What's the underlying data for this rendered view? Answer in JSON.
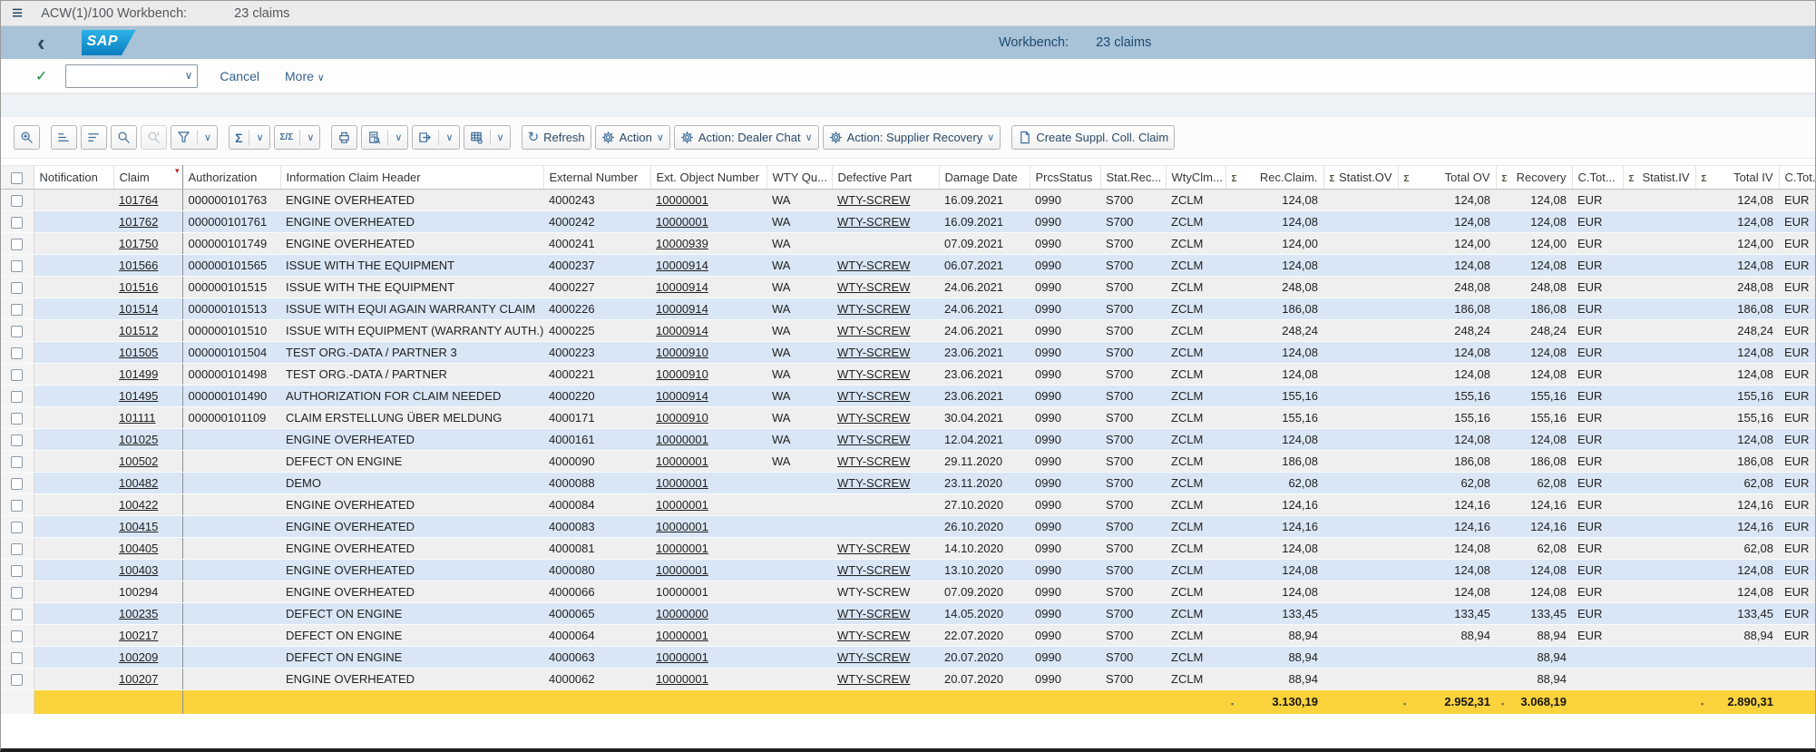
{
  "titlebar": {
    "title": "ACW(1)/100 Workbench:",
    "claims": "23 claims"
  },
  "brandbar": {
    "logo": "SAP",
    "label": "Workbench:",
    "value": "23 claims"
  },
  "shellbar": {
    "command_value": "",
    "cancel": "Cancel",
    "more": "More"
  },
  "alv_toolbar": {
    "refresh": "Refresh",
    "action": "Action",
    "action_dealer_chat": "Action: Dealer Chat",
    "action_supplier_recovery": "Action: Supplier Recovery",
    "create_suppl_coll_claim": "Create Suppl. Coll. Claim"
  },
  "icons": {
    "menu": "≡",
    "back": "‹",
    "ok_check": "✓",
    "chevron_down": "∨",
    "sigma": "Σ",
    "subtotal": "Σ/Σ",
    "refresh": "↻",
    "bullet": "▪",
    "sort_desc": "▾"
  },
  "colors": {
    "brand_bar": "#a8c2d8",
    "row_base": "#efefef",
    "row_alt": "#d9e6f5",
    "totals_row": "#fbd33c",
    "sap_logo_top": "#2cb3e8",
    "sap_logo_bottom": "#0b7dc0",
    "toolbar_icon": "#3f6e99",
    "sort_marker": "#b3261e"
  },
  "table": {
    "columns": [
      {
        "key": "sel",
        "label": ""
      },
      {
        "key": "notification",
        "label": "Notification"
      },
      {
        "key": "claim",
        "label": "Claim",
        "sorted": true,
        "link": true
      },
      {
        "key": "authorization",
        "label": "Authorization"
      },
      {
        "key": "info",
        "label": "Information Claim Header"
      },
      {
        "key": "external",
        "label": "External Number"
      },
      {
        "key": "ext_object",
        "label": "Ext. Object Number",
        "link": true
      },
      {
        "key": "wty_qu",
        "label": "WTY Qu..."
      },
      {
        "key": "defective_part",
        "label": "Defective Part",
        "link": true
      },
      {
        "key": "damage_date",
        "label": "Damage Date"
      },
      {
        "key": "prcs_status",
        "label": "PrcsStatus"
      },
      {
        "key": "stat_rec",
        "label": "Stat.Rec..."
      },
      {
        "key": "wty_clm",
        "label": "WtyClm..."
      },
      {
        "key": "rec_claim",
        "label": "Rec.Claim.",
        "sigma": true,
        "align": "right"
      },
      {
        "key": "statist_ov",
        "label": "Statist.OV",
        "sigma": true,
        "align": "right"
      },
      {
        "key": "total_ov",
        "label": "Total OV",
        "sigma": true,
        "align": "right"
      },
      {
        "key": "recovery",
        "label": "Recovery",
        "sigma": true,
        "align": "right"
      },
      {
        "key": "c_tot1",
        "label": "C.Tot..."
      },
      {
        "key": "statist_iv",
        "label": "Statist.IV",
        "sigma": true,
        "align": "right"
      },
      {
        "key": "total_iv",
        "label": "Total IV",
        "sigma": true,
        "align": "right"
      },
      {
        "key": "c_tot2",
        "label": "C.Tot..."
      }
    ],
    "rows": [
      {
        "notification": "",
        "claim": "101764",
        "authorization": "000000101763",
        "info": "ENGINE OVERHEATED",
        "external": "4000243",
        "ext_object": "10000001",
        "wty_qu": "WA",
        "defective_part": "WTY-SCREW",
        "damage_date": "16.09.2021",
        "prcs_status": "0990",
        "stat_rec": "S700",
        "wty_clm": "ZCLM",
        "rec_claim": "124,08",
        "statist_ov": "",
        "total_ov": "124,08",
        "recovery": "124,08",
        "c_tot1": "EUR",
        "statist_iv": "",
        "total_iv": "124,08",
        "c_tot2": "EUR"
      },
      {
        "notification": "",
        "claim": "101762",
        "authorization": "000000101761",
        "info": "ENGINE OVERHEATED",
        "external": "4000242",
        "ext_object": "10000001",
        "wty_qu": "WA",
        "defective_part": "WTY-SCREW",
        "damage_date": "16.09.2021",
        "prcs_status": "0990",
        "stat_rec": "S700",
        "wty_clm": "ZCLM",
        "rec_claim": "124,08",
        "statist_ov": "",
        "total_ov": "124,08",
        "recovery": "124,08",
        "c_tot1": "EUR",
        "statist_iv": "",
        "total_iv": "124,08",
        "c_tot2": "EUR"
      },
      {
        "notification": "",
        "claim": "101750",
        "authorization": "000000101749",
        "info": "ENGINE OVERHEATED",
        "external": "4000241",
        "ext_object": "10000939",
        "wty_qu": "WA",
        "defective_part": "",
        "damage_date": "07.09.2021",
        "prcs_status": "0990",
        "stat_rec": "S700",
        "wty_clm": "ZCLM",
        "rec_claim": "124,00",
        "statist_ov": "",
        "total_ov": "124,00",
        "recovery": "124,00",
        "c_tot1": "EUR",
        "statist_iv": "",
        "total_iv": "124,00",
        "c_tot2": "EUR"
      },
      {
        "notification": "",
        "claim": "101566",
        "authorization": "000000101565",
        "info": "ISSUE WITH THE EQUIPMENT",
        "external": "4000237",
        "ext_object": "10000914",
        "wty_qu": "WA",
        "defective_part": "WTY-SCREW",
        "damage_date": "06.07.2021",
        "prcs_status": "0990",
        "stat_rec": "S700",
        "wty_clm": "ZCLM",
        "rec_claim": "124,08",
        "statist_ov": "",
        "total_ov": "124,08",
        "recovery": "124,08",
        "c_tot1": "EUR",
        "statist_iv": "",
        "total_iv": "124,08",
        "c_tot2": "EUR"
      },
      {
        "notification": "",
        "claim": "101516",
        "authorization": "000000101515",
        "info": "ISSUE WITH THE EQUIPMENT",
        "external": "4000227",
        "ext_object": "10000914",
        "wty_qu": "WA",
        "defective_part": "WTY-SCREW",
        "damage_date": "24.06.2021",
        "prcs_status": "0990",
        "stat_rec": "S700",
        "wty_clm": "ZCLM",
        "rec_claim": "248,08",
        "statist_ov": "",
        "total_ov": "248,08",
        "recovery": "248,08",
        "c_tot1": "EUR",
        "statist_iv": "",
        "total_iv": "248,08",
        "c_tot2": "EUR"
      },
      {
        "notification": "",
        "claim": "101514",
        "authorization": "000000101513",
        "info": "ISSUE WITH EQUI AGAIN WARRANTY CLAIM",
        "external": "4000226",
        "ext_object": "10000914",
        "wty_qu": "WA",
        "defective_part": "WTY-SCREW",
        "damage_date": "24.06.2021",
        "prcs_status": "0990",
        "stat_rec": "S700",
        "wty_clm": "ZCLM",
        "rec_claim": "186,08",
        "statist_ov": "",
        "total_ov": "186,08",
        "recovery": "186,08",
        "c_tot1": "EUR",
        "statist_iv": "",
        "total_iv": "186,08",
        "c_tot2": "EUR"
      },
      {
        "notification": "",
        "claim": "101512",
        "authorization": "000000101510",
        "info": "ISSUE WITH EQUIPMENT (WARRANTY AUTH.)",
        "external": "4000225",
        "ext_object": "10000914",
        "wty_qu": "WA",
        "defective_part": "WTY-SCREW",
        "damage_date": "24.06.2021",
        "prcs_status": "0990",
        "stat_rec": "S700",
        "wty_clm": "ZCLM",
        "rec_claim": "248,24",
        "statist_ov": "",
        "total_ov": "248,24",
        "recovery": "248,24",
        "c_tot1": "EUR",
        "statist_iv": "",
        "total_iv": "248,24",
        "c_tot2": "EUR"
      },
      {
        "notification": "",
        "claim": "101505",
        "authorization": "000000101504",
        "info": "TEST ORG.-DATA / PARTNER 3",
        "external": "4000223",
        "ext_object": "10000910",
        "wty_qu": "WA",
        "defective_part": "WTY-SCREW",
        "damage_date": "23.06.2021",
        "prcs_status": "0990",
        "stat_rec": "S700",
        "wty_clm": "ZCLM",
        "rec_claim": "124,08",
        "statist_ov": "",
        "total_ov": "124,08",
        "recovery": "124,08",
        "c_tot1": "EUR",
        "statist_iv": "",
        "total_iv": "124,08",
        "c_tot2": "EUR"
      },
      {
        "notification": "",
        "claim": "101499",
        "authorization": "000000101498",
        "info": "TEST ORG.-DATA / PARTNER",
        "external": "4000221",
        "ext_object": "10000910",
        "wty_qu": "WA",
        "defective_part": "WTY-SCREW",
        "damage_date": "23.06.2021",
        "prcs_status": "0990",
        "stat_rec": "S700",
        "wty_clm": "ZCLM",
        "rec_claim": "124,08",
        "statist_ov": "",
        "total_ov": "124,08",
        "recovery": "124,08",
        "c_tot1": "EUR",
        "statist_iv": "",
        "total_iv": "124,08",
        "c_tot2": "EUR"
      },
      {
        "notification": "",
        "claim": "101495",
        "authorization": "000000101490",
        "info": "AUTHORIZATION FOR CLAIM NEEDED",
        "external": "4000220",
        "ext_object": "10000914",
        "wty_qu": "WA",
        "defective_part": "WTY-SCREW",
        "damage_date": "23.06.2021",
        "prcs_status": "0990",
        "stat_rec": "S700",
        "wty_clm": "ZCLM",
        "rec_claim": "155,16",
        "statist_ov": "",
        "total_ov": "155,16",
        "recovery": "155,16",
        "c_tot1": "EUR",
        "statist_iv": "",
        "total_iv": "155,16",
        "c_tot2": "EUR"
      },
      {
        "notification": "",
        "claim": "101111",
        "authorization": "000000101109",
        "info": "CLAIM ERSTELLUNG ÜBER MELDUNG",
        "external": "4000171",
        "ext_object": "10000910",
        "wty_qu": "WA",
        "defective_part": "WTY-SCREW",
        "damage_date": "30.04.2021",
        "prcs_status": "0990",
        "stat_rec": "S700",
        "wty_clm": "ZCLM",
        "rec_claim": "155,16",
        "statist_ov": "",
        "total_ov": "155,16",
        "recovery": "155,16",
        "c_tot1": "EUR",
        "statist_iv": "",
        "total_iv": "155,16",
        "c_tot2": "EUR"
      },
      {
        "notification": "",
        "claim": "101025",
        "authorization": "",
        "info": "ENGINE OVERHEATED",
        "external": "4000161",
        "ext_object": "10000001",
        "wty_qu": "WA",
        "defective_part": "WTY-SCREW",
        "damage_date": "12.04.2021",
        "prcs_status": "0990",
        "stat_rec": "S700",
        "wty_clm": "ZCLM",
        "rec_claim": "124,08",
        "statist_ov": "",
        "total_ov": "124,08",
        "recovery": "124,08",
        "c_tot1": "EUR",
        "statist_iv": "",
        "total_iv": "124,08",
        "c_tot2": "EUR"
      },
      {
        "notification": "",
        "claim": "100502",
        "authorization": "",
        "info": "DEFECT ON ENGINE",
        "external": "4000090",
        "ext_object": "10000001",
        "wty_qu": "WA",
        "defective_part": "WTY-SCREW",
        "damage_date": "29.11.2020",
        "prcs_status": "0990",
        "stat_rec": "S700",
        "wty_clm": "ZCLM",
        "rec_claim": "186,08",
        "statist_ov": "",
        "total_ov": "186,08",
        "recovery": "186,08",
        "c_tot1": "EUR",
        "statist_iv": "",
        "total_iv": "186,08",
        "c_tot2": "EUR"
      },
      {
        "notification": "",
        "claim": "100482",
        "authorization": "",
        "info": "DEMO",
        "external": "4000088",
        "ext_object": "10000001",
        "wty_qu": "",
        "defective_part": "WTY-SCREW",
        "damage_date": "23.11.2020",
        "prcs_status": "0990",
        "stat_rec": "S700",
        "wty_clm": "ZCLM",
        "rec_claim": "62,08",
        "statist_ov": "",
        "total_ov": "62,08",
        "recovery": "62,08",
        "c_tot1": "EUR",
        "statist_iv": "",
        "total_iv": "62,08",
        "c_tot2": "EUR"
      },
      {
        "notification": "",
        "claim": "100422",
        "authorization": "",
        "info": "ENGINE OVERHEATED",
        "external": "4000084",
        "ext_object": "10000001",
        "wty_qu": "",
        "defective_part": "",
        "damage_date": "27.10.2020",
        "prcs_status": "0990",
        "stat_rec": "S700",
        "wty_clm": "ZCLM",
        "rec_claim": "124,16",
        "statist_ov": "",
        "total_ov": "124,16",
        "recovery": "124,16",
        "c_tot1": "EUR",
        "statist_iv": "",
        "total_iv": "124,16",
        "c_tot2": "EUR"
      },
      {
        "notification": "",
        "claim": "100415",
        "authorization": "",
        "info": "ENGINE OVERHEATED",
        "external": "4000083",
        "ext_object": "10000001",
        "wty_qu": "",
        "defective_part": "",
        "damage_date": "26.10.2020",
        "prcs_status": "0990",
        "stat_rec": "S700",
        "wty_clm": "ZCLM",
        "rec_claim": "124,16",
        "statist_ov": "",
        "total_ov": "124,16",
        "recovery": "124,16",
        "c_tot1": "EUR",
        "statist_iv": "",
        "total_iv": "124,16",
        "c_tot2": "EUR"
      },
      {
        "notification": "",
        "claim": "100405",
        "authorization": "",
        "info": "ENGINE OVERHEATED",
        "external": "4000081",
        "ext_object": "10000001",
        "wty_qu": "",
        "defective_part": "WTY-SCREW",
        "damage_date": "14.10.2020",
        "prcs_status": "0990",
        "stat_rec": "S700",
        "wty_clm": "ZCLM",
        "rec_claim": "124,08",
        "statist_ov": "",
        "total_ov": "124,08",
        "recovery": "62,08",
        "c_tot1": "EUR",
        "statist_iv": "",
        "total_iv": "62,08",
        "c_tot2": "EUR"
      },
      {
        "notification": "",
        "claim": "100403",
        "authorization": "",
        "info": "ENGINE OVERHEATED",
        "external": "4000080",
        "ext_object": "10000001",
        "wty_qu": "",
        "defective_part": "WTY-SCREW",
        "damage_date": "13.10.2020",
        "prcs_status": "0990",
        "stat_rec": "S700",
        "wty_clm": "ZCLM",
        "rec_claim": "124,08",
        "statist_ov": "",
        "total_ov": "124,08",
        "recovery": "124,08",
        "c_tot1": "EUR",
        "statist_iv": "",
        "total_iv": "124,08",
        "c_tot2": "EUR"
      },
      {
        "notification": "",
        "claim": "100294",
        "authorization": "",
        "info": "ENGINE OVERHEATED",
        "external": "4000066",
        "ext_object": "10000001",
        "wty_qu": "",
        "defective_part": "WTY-SCREW",
        "damage_date": "07.09.2020",
        "prcs_status": "0990",
        "stat_rec": "S700",
        "wty_clm": "ZCLM",
        "rec_claim": "124,08",
        "statist_ov": "",
        "total_ov": "124,08",
        "recovery": "124,08",
        "c_tot1": "EUR",
        "statist_iv": "",
        "total_iv": "124,08",
        "c_tot2": "EUR",
        "links": false
      },
      {
        "notification": "",
        "claim": "100235",
        "authorization": "",
        "info": "DEFECT ON ENGINE",
        "external": "4000065",
        "ext_object": "10000000",
        "wty_qu": "",
        "defective_part": "WTY-SCREW",
        "damage_date": "14.05.2020",
        "prcs_status": "0990",
        "stat_rec": "S700",
        "wty_clm": "ZCLM",
        "rec_claim": "133,45",
        "statist_ov": "",
        "total_ov": "133,45",
        "recovery": "133,45",
        "c_tot1": "EUR",
        "statist_iv": "",
        "total_iv": "133,45",
        "c_tot2": "EUR"
      },
      {
        "notification": "",
        "claim": "100217",
        "authorization": "",
        "info": "DEFECT ON ENGINE",
        "external": "4000064",
        "ext_object": "10000001",
        "wty_qu": "",
        "defective_part": "WTY-SCREW",
        "damage_date": "22.07.2020",
        "prcs_status": "0990",
        "stat_rec": "S700",
        "wty_clm": "ZCLM",
        "rec_claim": "88,94",
        "statist_ov": "",
        "total_ov": "88,94",
        "recovery": "88,94",
        "c_tot1": "EUR",
        "statist_iv": "",
        "total_iv": "88,94",
        "c_tot2": "EUR"
      },
      {
        "notification": "",
        "claim": "100209",
        "authorization": "",
        "info": "DEFECT ON ENGINE",
        "external": "4000063",
        "ext_object": "10000001",
        "wty_qu": "",
        "defective_part": "WTY-SCREW",
        "damage_date": "20.07.2020",
        "prcs_status": "0990",
        "stat_rec": "S700",
        "wty_clm": "ZCLM",
        "rec_claim": "88,94",
        "statist_ov": "",
        "total_ov": "",
        "recovery": "88,94",
        "c_tot1": "",
        "statist_iv": "",
        "total_iv": "",
        "c_tot2": ""
      },
      {
        "notification": "",
        "claim": "100207",
        "authorization": "",
        "info": "ENGINE OVERHEATED",
        "external": "4000062",
        "ext_object": "10000001",
        "wty_qu": "",
        "defective_part": "WTY-SCREW",
        "damage_date": "20.07.2020",
        "prcs_status": "0990",
        "stat_rec": "S700",
        "wty_clm": "ZCLM",
        "rec_claim": "88,94",
        "statist_ov": "",
        "total_ov": "",
        "recovery": "88,94",
        "c_tot1": "",
        "statist_iv": "",
        "total_iv": "",
        "c_tot2": ""
      }
    ],
    "totals": {
      "rec_claim": "3.130,19",
      "total_ov": "2.952,31",
      "recovery": "3.068,19",
      "total_iv": "2.890,31"
    }
  }
}
